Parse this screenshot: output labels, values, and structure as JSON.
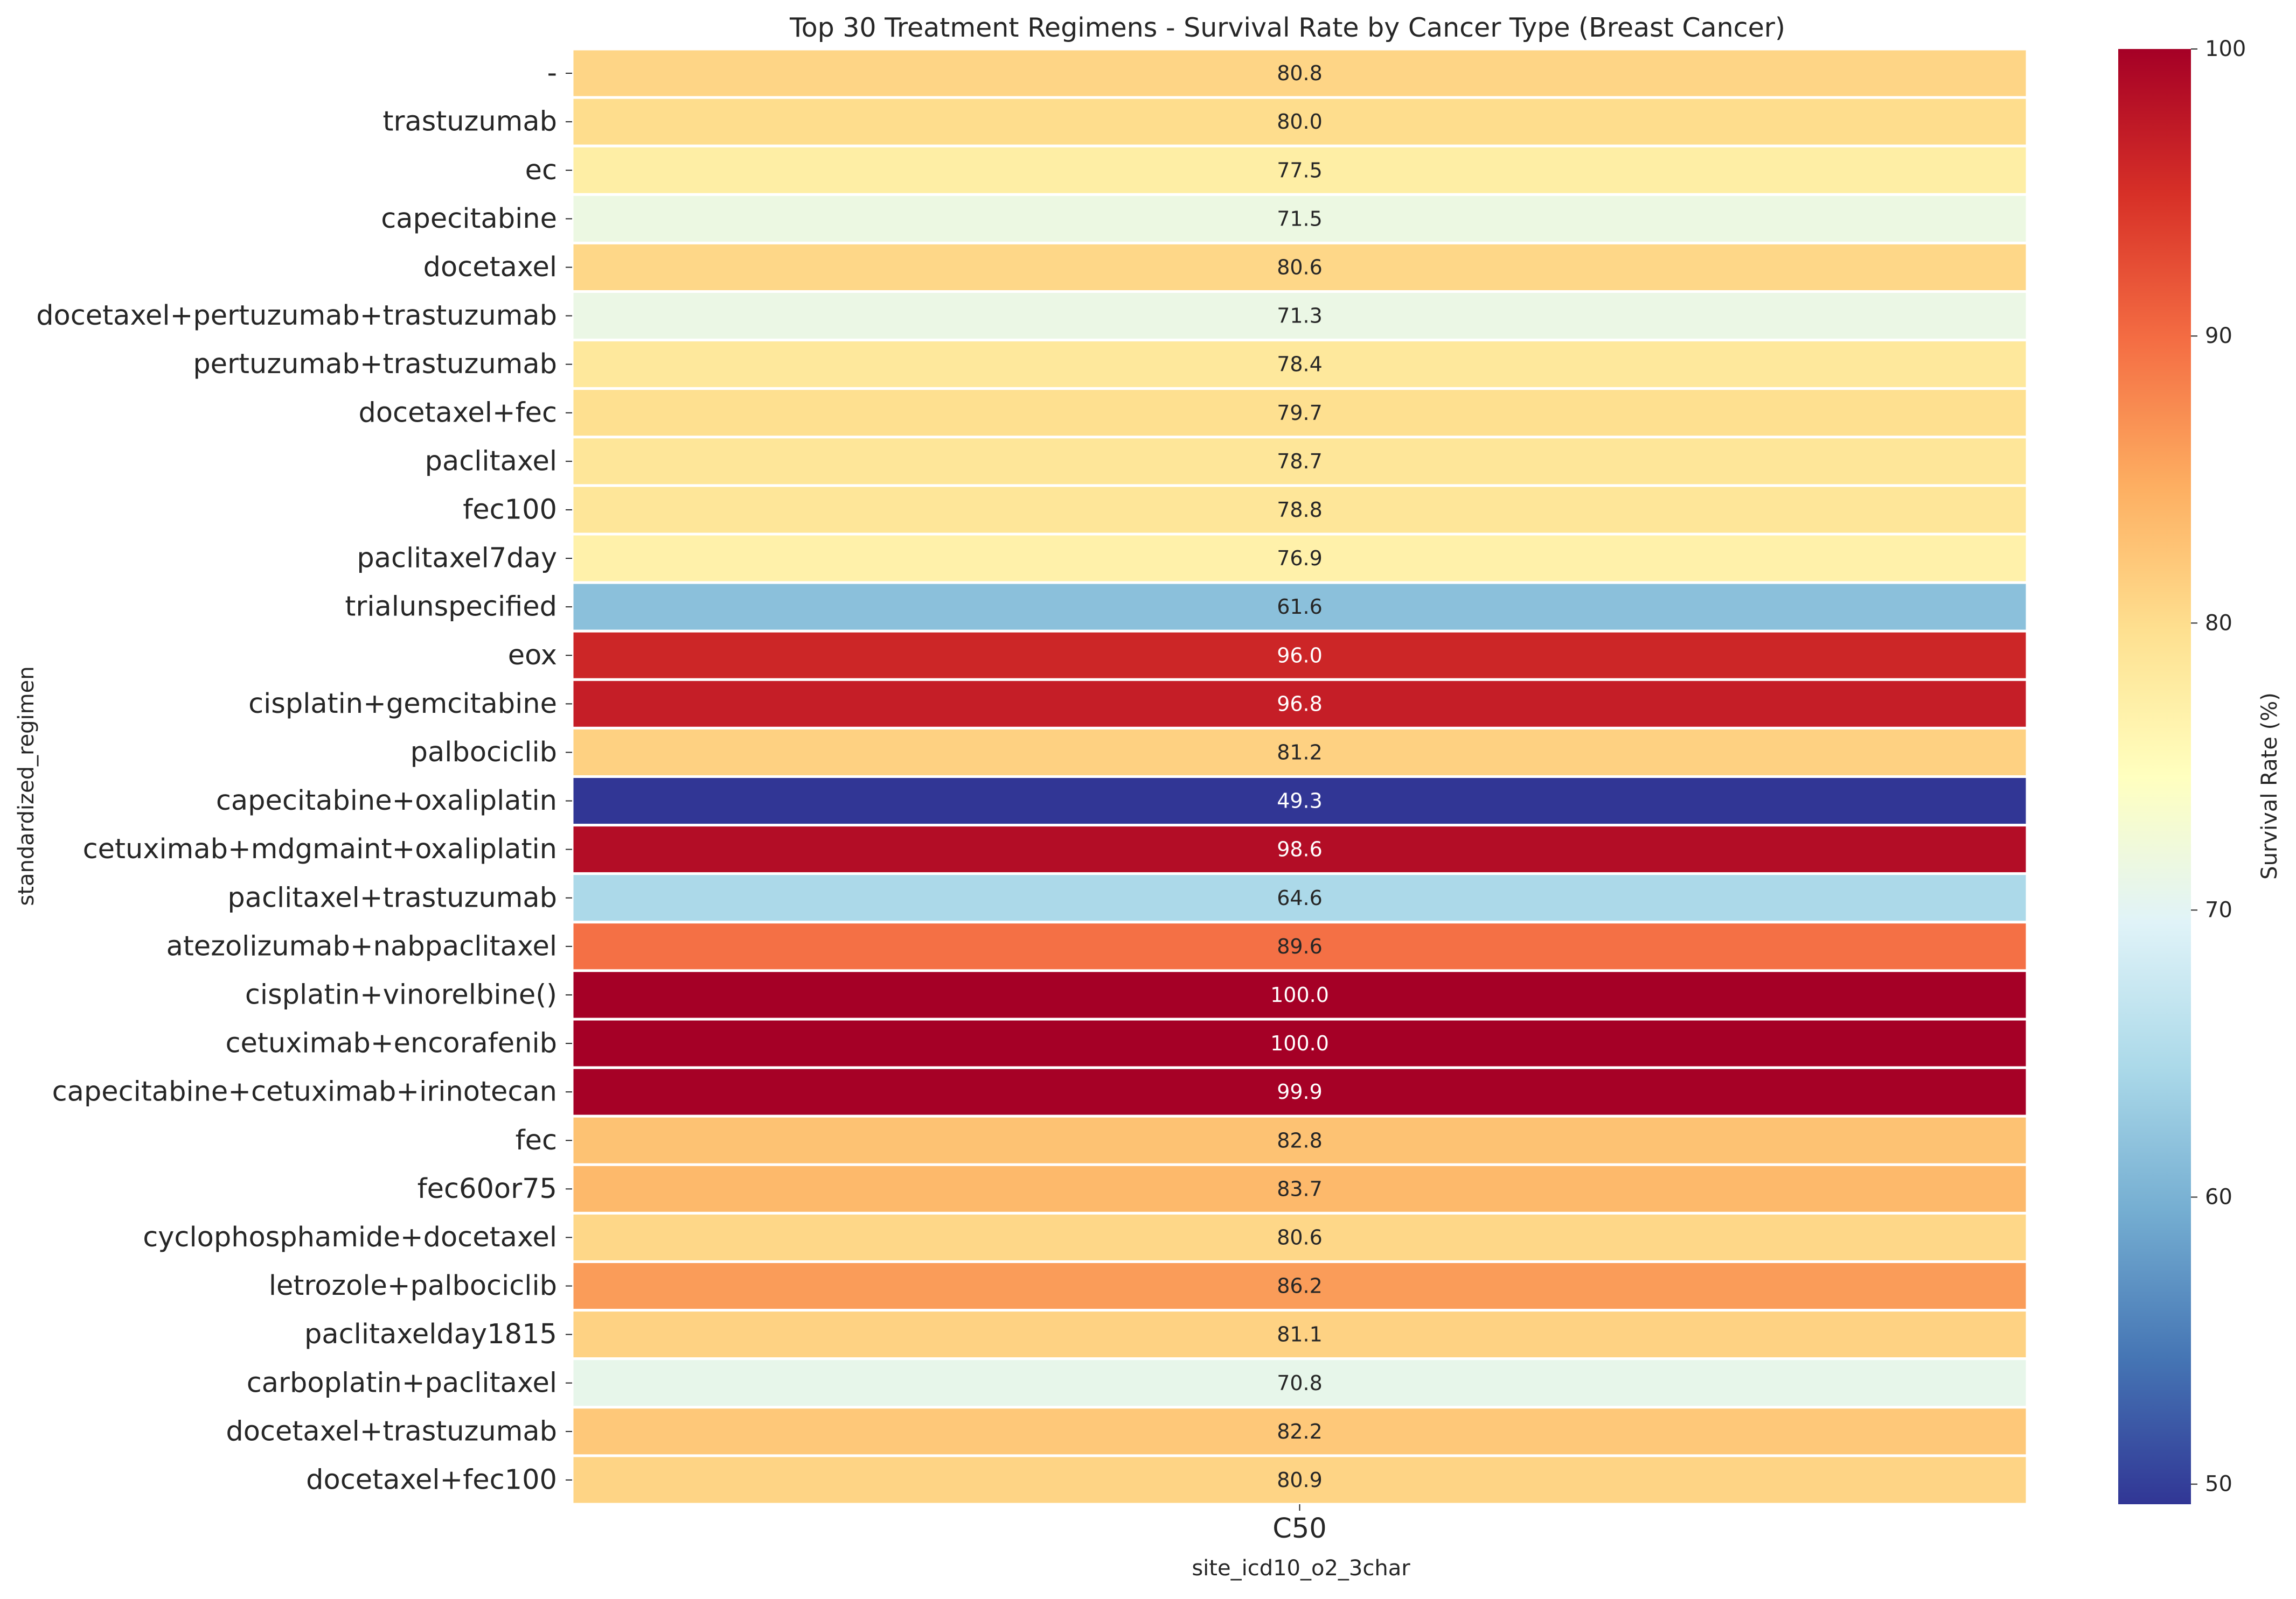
{
  "chart_data": {
    "type": "heatmap",
    "title": "Top 30 Treatment Regimens - Survival Rate by Cancer Type (Breast Cancer)",
    "xlabel": "site_icd10_o2_3char",
    "ylabel": "standardized_regimen",
    "columns": [
      "C50"
    ],
    "rows": [
      "-",
      "trastuzumab",
      "ec",
      "capecitabine",
      "docetaxel",
      "docetaxel+pertuzumab+trastuzumab",
      "pertuzumab+trastuzumab",
      "docetaxel+fec",
      "paclitaxel",
      "fec100",
      "paclitaxel7day",
      "trialunspecified",
      "eox",
      "cisplatin+gemcitabine",
      "palbociclib",
      "capecitabine+oxaliplatin",
      "cetuximab+mdgmaint+oxaliplatin",
      "paclitaxel+trastuzumab",
      "atezolizumab+nabpaclitaxel",
      "cisplatin+vinorelbine()",
      "cetuximab+encorafenib",
      "capecitabine+cetuximab+irinotecan",
      "fec",
      "fec60or75",
      "cyclophosphamide+docetaxel",
      "letrozole+palbociclib",
      "paclitaxelday1815",
      "carboplatin+paclitaxel",
      "docetaxel+trastuzumab",
      "docetaxel+fec100"
    ],
    "values": [
      [
        80.8
      ],
      [
        80.0
      ],
      [
        77.5
      ],
      [
        71.5
      ],
      [
        80.6
      ],
      [
        71.3
      ],
      [
        78.4
      ],
      [
        79.7
      ],
      [
        78.7
      ],
      [
        78.8
      ],
      [
        76.9
      ],
      [
        61.6
      ],
      [
        96.0
      ],
      [
        96.8
      ],
      [
        81.2
      ],
      [
        49.3
      ],
      [
        98.6
      ],
      [
        64.6
      ],
      [
        89.6
      ],
      [
        100.0
      ],
      [
        100.0
      ],
      [
        99.9
      ],
      [
        82.8
      ],
      [
        83.7
      ],
      [
        80.6
      ],
      [
        86.2
      ],
      [
        81.1
      ],
      [
        70.8
      ],
      [
        82.2
      ],
      [
        80.9
      ]
    ],
    "value_labels": [
      "80.8",
      "80.0",
      "77.5",
      "71.5",
      "80.6",
      "71.3",
      "78.4",
      "79.7",
      "78.7",
      "78.8",
      "76.9",
      "61.6",
      "96.0",
      "96.8",
      "81.2",
      "49.3",
      "98.6",
      "64.6",
      "89.6",
      "100.0",
      "100.0",
      "99.9",
      "82.8",
      "83.7",
      "80.6",
      "86.2",
      "81.1",
      "70.8",
      "82.2",
      "80.9"
    ],
    "colorbar": {
      "label": "Survival Rate (%)",
      "range": [
        49.3,
        100.0
      ],
      "ticks": [
        50,
        60,
        70,
        80,
        90,
        100
      ],
      "tick_labels": [
        "50",
        "60",
        "70",
        "80",
        "90",
        "100"
      ],
      "colormap": "RdYlBu_r",
      "colormap_stops": [
        "#313695",
        "#4575b4",
        "#74add1",
        "#abd9e9",
        "#e0f3f8",
        "#ffffbf",
        "#fee090",
        "#fdae61",
        "#f46d43",
        "#d73027",
        "#a50026"
      ]
    },
    "grid": false,
    "legend": "colorbar-right"
  }
}
